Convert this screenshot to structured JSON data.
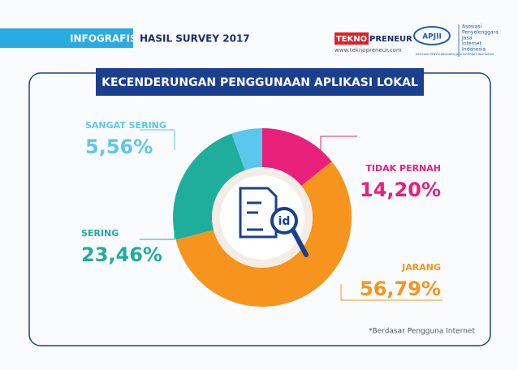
{
  "header": {
    "tag": "INFOGRAFIS",
    "subtitle": "HASIL SURVEY 2017",
    "logo_left": {
      "part1": "TEKNO",
      "part2": "PRENEUR",
      "url": "www.teknopreneur.com"
    },
    "logo_right": {
      "name": "APJII",
      "lines": [
        "Asosiasi",
        "Penyelenggara",
        "Jasa",
        "Internet",
        "Indonesia"
      ],
      "tagline": "ASOSIASI PENYELENGGARA JASA INTERNET INDONESIA"
    }
  },
  "icon": {
    "label": "id"
  },
  "chart_data": {
    "type": "pie",
    "title": "KECENDERUNGAN PENGGUNAAN APLIKASI LOKAL",
    "categories": [
      "TIDAK PERNAH",
      "JARANG",
      "SERING",
      "SANGAT SERING"
    ],
    "values": [
      14.2,
      56.79,
      23.46,
      5.56
    ],
    "value_labels": [
      "14,20%",
      "56,79%",
      "23,46%",
      "5,56%"
    ],
    "colors": [
      "#e8207a",
      "#f7941d",
      "#1fae9c",
      "#5cc7ee"
    ],
    "note": "*Berdasar Pengguna Internet"
  }
}
